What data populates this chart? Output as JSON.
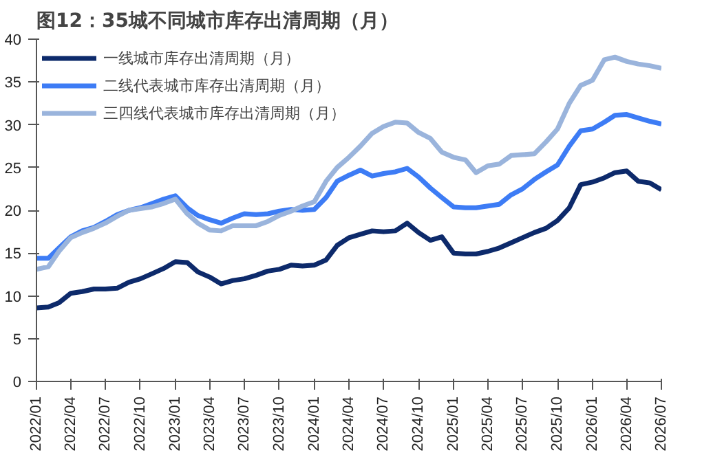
{
  "chart_data": {
    "type": "line",
    "title": "图12：35城不同城市库存出清周期（月）",
    "x": [
      "2022-01",
      "2022-02",
      "2022-03",
      "2022-04",
      "2022-05",
      "2022-06",
      "2022-07",
      "2022-08",
      "2022-09",
      "2022-10",
      "2022-11",
      "2022-12",
      "2023-01",
      "2023-02",
      "2023-03",
      "2023-04",
      "2023-05",
      "2023-06",
      "2023-07",
      "2023-08",
      "2023-09",
      "2023-10",
      "2023-11",
      "2023-12",
      "2024-01",
      "2024-02",
      "2024-03",
      "2024-04",
      "2024-05",
      "2024-06",
      "2024-07",
      "2024-08",
      "2024-09",
      "2024-10",
      "2024-11",
      "2024-12",
      "2025-01",
      "2025-02",
      "2025-03",
      "2025-04",
      "2025-05",
      "2025-06",
      "2025-07",
      "2025-08",
      "2025-09",
      "2025-10",
      "2025-11",
      "2025-12",
      "2026-01",
      "2026-02",
      "2026-03",
      "2026-04",
      "2026-05",
      "2026-06",
      "2026-07"
    ],
    "series": [
      {
        "name": "一线城市库存出清周期（月）",
        "color": "#0d2a6b",
        "values": [
          8.6,
          8.7,
          9.2,
          10.3,
          10.5,
          10.8,
          10.8,
          10.9,
          11.6,
          12.0,
          12.6,
          13.2,
          14.0,
          13.9,
          12.8,
          12.2,
          11.4,
          11.8,
          12.0,
          12.4,
          12.9,
          13.1,
          13.6,
          13.5,
          13.6,
          14.2,
          15.9,
          16.8,
          17.2,
          17.6,
          17.5,
          17.6,
          18.5,
          17.4,
          16.5,
          16.9,
          15.0,
          14.9,
          14.9,
          15.2,
          15.6,
          16.2,
          16.8,
          17.4,
          17.9,
          18.8,
          20.3,
          23.0,
          23.3,
          23.8,
          24.4,
          24.6,
          23.4,
          23.2,
          22.4
        ]
      },
      {
        "name": "二线代表城市库存出清周期（月）",
        "color": "#3d7cf5",
        "values": [
          14.4,
          14.4,
          15.6,
          16.9,
          17.6,
          18.0,
          18.7,
          19.5,
          20.0,
          20.3,
          20.8,
          21.3,
          21.7,
          20.3,
          19.4,
          18.9,
          18.5,
          19.1,
          19.6,
          19.5,
          19.6,
          19.9,
          20.1,
          20.0,
          20.1,
          21.5,
          23.4,
          24.1,
          24.7,
          24.0,
          24.3,
          24.5,
          24.9,
          23.9,
          22.6,
          21.5,
          20.4,
          20.3,
          20.3,
          20.5,
          20.7,
          21.8,
          22.5,
          23.6,
          24.5,
          25.3,
          27.5,
          29.3,
          29.5,
          30.3,
          31.1,
          31.2,
          30.8,
          30.4,
          30.1
        ]
      },
      {
        "name": "三四线代表城市库存出清周期（月）",
        "color": "#9ab4dc",
        "values": [
          13.1,
          13.4,
          15.2,
          16.8,
          17.4,
          17.9,
          18.5,
          19.3,
          20.0,
          20.2,
          20.4,
          20.8,
          21.3,
          19.6,
          18.5,
          17.7,
          17.6,
          18.2,
          18.2,
          18.2,
          18.7,
          19.4,
          19.9,
          20.5,
          21.0,
          23.4,
          25.0,
          26.2,
          27.5,
          29.0,
          29.8,
          30.3,
          30.2,
          29.1,
          28.4,
          26.8,
          26.2,
          25.9,
          24.4,
          25.2,
          25.4,
          26.4,
          26.5,
          26.6,
          28.0,
          29.5,
          32.5,
          34.6,
          35.2,
          37.6,
          37.9,
          37.4,
          37.1,
          36.9,
          36.6
        ]
      }
    ],
    "xlim": [
      "2022-01",
      "2026-07"
    ],
    "xticks": [
      {
        "value": "2022-01",
        "label": "2022/01"
      },
      {
        "value": "2022-04",
        "label": "2022/04"
      },
      {
        "value": "2022-07",
        "label": "2022/07"
      },
      {
        "value": "2022-10",
        "label": "2022/10"
      },
      {
        "value": "2023-01",
        "label": "2023/01"
      },
      {
        "value": "2023-04",
        "label": "2023/04"
      },
      {
        "value": "2023-07",
        "label": "2023/07"
      },
      {
        "value": "2023-10",
        "label": "2023/10"
      },
      {
        "value": "2024-01",
        "label": "2024/01"
      },
      {
        "value": "2024-04",
        "label": "2024/04"
      },
      {
        "value": "2024-07",
        "label": "2024/07"
      },
      {
        "value": "2024-10",
        "label": "2024/10"
      },
      {
        "value": "2025-01",
        "label": "2025/01"
      },
      {
        "value": "2025-04",
        "label": "2025/04"
      },
      {
        "value": "2025-07",
        "label": "2025/07"
      },
      {
        "value": "2025-10",
        "label": "2025/10"
      },
      {
        "value": "2026-01",
        "label": "2026/01"
      },
      {
        "value": "2026-04",
        "label": "2026/04"
      },
      {
        "value": "2026-07",
        "label": "2026/07"
      }
    ],
    "ylim": [
      0,
      40
    ],
    "yticks": [
      0,
      5,
      10,
      15,
      20,
      25,
      30,
      35,
      40
    ],
    "grid": false,
    "legend": "top left",
    "marker": "none",
    "line_style": "solid"
  }
}
